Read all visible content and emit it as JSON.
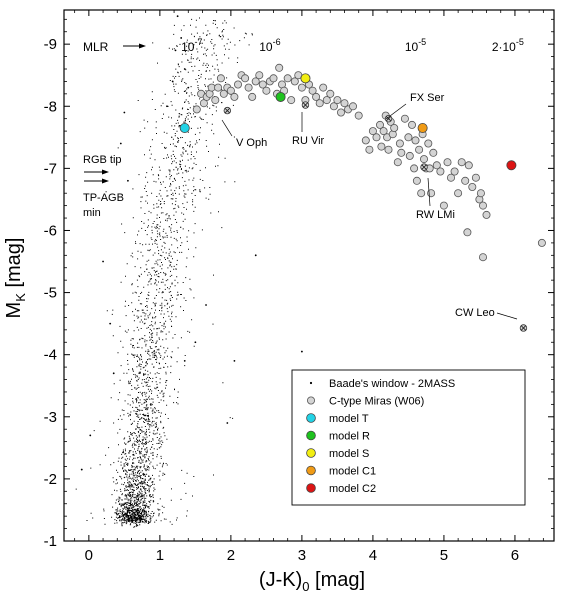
{
  "chart_data": {
    "type": "scatter",
    "title": "",
    "xlabel": "(J-K)0 [mag]",
    "xlabel_main": "(J-K)",
    "xlabel_sub": "0",
    "xlabel_unit": " [mag]",
    "ylabel": "MK [mag]",
    "ylabel_main": "M",
    "ylabel_sub": "K",
    "ylabel_unit": " [mag]",
    "xlim": [
      -0.35,
      6.55
    ],
    "ylim": [
      -1,
      -9.55
    ],
    "y_inverted": true,
    "x_ticks": [
      0,
      1,
      2,
      3,
      4,
      5,
      6
    ],
    "x_tick_labels": [
      "0",
      "1",
      "2",
      "3",
      "4",
      "5",
      "6"
    ],
    "y_ticks": [
      -1,
      -2,
      -3,
      -4,
      -5,
      -6,
      -7,
      -8,
      -9
    ],
    "y_tick_labels": [
      "-1",
      "-2",
      "-3",
      "-4",
      "-5",
      "-6",
      "-7",
      "-8",
      "-9"
    ],
    "grid": false,
    "legend_position": "bottom-right",
    "legend": [
      {
        "label": "Baade's window - 2MASS",
        "marker": "dot",
        "color": "#000000"
      },
      {
        "label": "C-type Miras (W06)",
        "marker": "open-circle",
        "color": "#d4d4d4"
      },
      {
        "label": "model T",
        "marker": "circle",
        "color": "#22d3e6"
      },
      {
        "label": "model R",
        "marker": "circle",
        "color": "#1ec21e"
      },
      {
        "label": "model S",
        "marker": "circle",
        "color": "#f2ee12"
      },
      {
        "label": "model C1",
        "marker": "circle",
        "color": "#f09b16"
      },
      {
        "label": "model C2",
        "marker": "circle",
        "color": "#dc1414"
      }
    ],
    "mlr": {
      "label": "MLR",
      "values": [
        {
          "mantissa": "10",
          "exponent": "-7",
          "x": 1.45
        },
        {
          "mantissa": "10",
          "exponent": "-6",
          "x": 2.55
        },
        {
          "mantissa": "10",
          "exponent": "-5",
          "x": 4.6
        },
        {
          "mantissa": "2·10",
          "exponent": "-5",
          "x": 5.9
        }
      ]
    },
    "arrows": [
      {
        "label": "RGB tip",
        "y": -6.97
      },
      {
        "label": "TP-AGB min",
        "label_lines": [
          "TP-AGB",
          "min"
        ],
        "y": -6.8
      }
    ],
    "series": [
      {
        "name": "C-type Miras (W06)",
        "points": [
          [
            1.52,
            -7.95
          ],
          [
            1.58,
            -8.2
          ],
          [
            1.62,
            -8.05
          ],
          [
            1.66,
            -8.15
          ],
          [
            1.7,
            -8.2
          ],
          [
            1.73,
            -8.3
          ],
          [
            1.78,
            -8.1
          ],
          [
            1.82,
            -8.3
          ],
          [
            1.86,
            -8.45
          ],
          [
            1.9,
            -8.2
          ],
          [
            1.95,
            -8.3
          ],
          [
            2.0,
            -8.25
          ],
          [
            2.05,
            -8.15
          ],
          [
            2.1,
            -8.35
          ],
          [
            2.15,
            -8.5
          ],
          [
            2.2,
            -8.45
          ],
          [
            2.25,
            -8.3
          ],
          [
            2.3,
            -8.15
          ],
          [
            2.35,
            -8.4
          ],
          [
            2.4,
            -8.5
          ],
          [
            2.45,
            -8.35
          ],
          [
            2.5,
            -8.25
          ],
          [
            2.55,
            -8.4
          ],
          [
            2.6,
            -8.45
          ],
          [
            2.65,
            -8.2
          ],
          [
            2.68,
            -8.62
          ],
          [
            2.72,
            -8.35
          ],
          [
            2.75,
            -8.25
          ],
          [
            2.8,
            -8.45
          ],
          [
            2.85,
            -8.1
          ],
          [
            2.9,
            -8.4
          ],
          [
            2.95,
            -8.5
          ],
          [
            3.0,
            -8.3
          ],
          [
            3.05,
            -8.1
          ],
          [
            3.1,
            -8.35
          ],
          [
            3.15,
            -8.25
          ],
          [
            3.2,
            -8.15
          ],
          [
            3.25,
            -8.05
          ],
          [
            3.3,
            -8.3
          ],
          [
            3.35,
            -8.1
          ],
          [
            3.4,
            -8.2
          ],
          [
            3.45,
            -8.0
          ],
          [
            3.5,
            -8.1
          ],
          [
            3.55,
            -7.9
          ],
          [
            3.6,
            -8.05
          ],
          [
            3.65,
            -7.95
          ],
          [
            3.72,
            -8.0
          ],
          [
            3.8,
            -7.85
          ],
          [
            3.9,
            -7.45
          ],
          [
            3.95,
            -7.3
          ],
          [
            4.0,
            -7.6
          ],
          [
            4.05,
            -7.5
          ],
          [
            4.1,
            -7.7
          ],
          [
            4.12,
            -7.35
          ],
          [
            4.15,
            -7.6
          ],
          [
            4.18,
            -7.85
          ],
          [
            4.2,
            -7.5
          ],
          [
            4.22,
            -7.3
          ],
          [
            4.25,
            -7.75
          ],
          [
            4.28,
            -7.55
          ],
          [
            4.3,
            -7.65
          ],
          [
            4.35,
            -7.1
          ],
          [
            4.38,
            -7.4
          ],
          [
            4.4,
            -7.25
          ],
          [
            4.45,
            -7.8
          ],
          [
            4.5,
            -7.5
          ],
          [
            4.52,
            -7.2
          ],
          [
            4.55,
            -7.7
          ],
          [
            4.58,
            -7.0
          ],
          [
            4.6,
            -7.45
          ],
          [
            4.62,
            -6.8
          ],
          [
            4.65,
            -7.3
          ],
          [
            4.68,
            -6.6
          ],
          [
            4.7,
            -7.55
          ],
          [
            4.72,
            -7.15
          ],
          [
            4.75,
            -7.0
          ],
          [
            4.78,
            -7.4
          ],
          [
            4.8,
            -7.0
          ],
          [
            4.82,
            -6.6
          ],
          [
            4.85,
            -7.25
          ],
          [
            4.9,
            -7.05
          ],
          [
            4.95,
            -6.95
          ],
          [
            5.0,
            -6.4
          ],
          [
            5.05,
            -7.1
          ],
          [
            5.1,
            -6.85
          ],
          [
            5.15,
            -6.95
          ],
          [
            5.2,
            -6.6
          ],
          [
            5.25,
            -7.1
          ],
          [
            5.3,
            -6.8
          ],
          [
            5.35,
            -7.05
          ],
          [
            5.4,
            -6.7
          ],
          [
            5.45,
            -6.85
          ],
          [
            5.5,
            -6.5
          ],
          [
            5.52,
            -6.6
          ],
          [
            5.55,
            -6.4
          ],
          [
            5.6,
            -6.25
          ],
          [
            5.33,
            -5.97
          ],
          [
            5.55,
            -5.57
          ],
          [
            6.38,
            -5.8
          ]
        ]
      },
      {
        "name": "Baade's window - 2MASS",
        "points": [
          [
            1.25,
            -9.45
          ],
          [
            1.3,
            -9.1
          ],
          [
            1.22,
            -8.9
          ],
          [
            1.35,
            -8.6
          ],
          [
            1.18,
            -8.4
          ],
          [
            1.4,
            -8.3
          ],
          [
            1.1,
            -8.0
          ],
          [
            0.5,
            -7.9
          ],
          [
            0.45,
            -7.4
          ],
          [
            0.55,
            -6.8
          ],
          [
            1.5,
            -4.2
          ],
          [
            1.35,
            -3.9
          ],
          [
            2.05,
            -3.9
          ],
          [
            2.35,
            -5.6
          ],
          [
            3.0,
            -4.05
          ],
          [
            3.15,
            -3.3
          ],
          [
            1.65,
            -4.8
          ],
          [
            2.95,
            -2.35
          ],
          [
            0.02,
            -2.7
          ],
          [
            -0.1,
            -2.15
          ],
          [
            0.35,
            -3.7
          ],
          [
            0.3,
            -4.5
          ],
          [
            0.2,
            -5.5
          ],
          [
            1.95,
            -2.9
          ]
        ]
      },
      {
        "name": "named",
        "points": [
          {
            "x": 1.95,
            "y": -7.93,
            "label": "V Oph"
          },
          {
            "x": 3.05,
            "y": -8.02,
            "label": "RU Vir"
          },
          {
            "x": 4.22,
            "y": -7.8,
            "label": "FX Ser"
          },
          {
            "x": 4.72,
            "y": -7.02,
            "label": "RW LMi"
          },
          {
            "x": 6.12,
            "y": -4.43,
            "label": "CW Leo"
          }
        ]
      },
      {
        "name": "model T",
        "points": [
          [
            1.35,
            -7.65
          ]
        ]
      },
      {
        "name": "model R",
        "points": [
          [
            2.7,
            -8.15
          ]
        ]
      },
      {
        "name": "model S",
        "points": [
          [
            3.05,
            -8.45
          ]
        ]
      },
      {
        "name": "model C1",
        "points": [
          [
            4.7,
            -7.65
          ]
        ]
      },
      {
        "name": "model C2",
        "points": [
          [
            5.95,
            -7.05
          ]
        ]
      }
    ],
    "colors": {
      "dot": "#000000",
      "mira_fill": "#d4d4d4",
      "mira_stroke": "#555555"
    }
  }
}
